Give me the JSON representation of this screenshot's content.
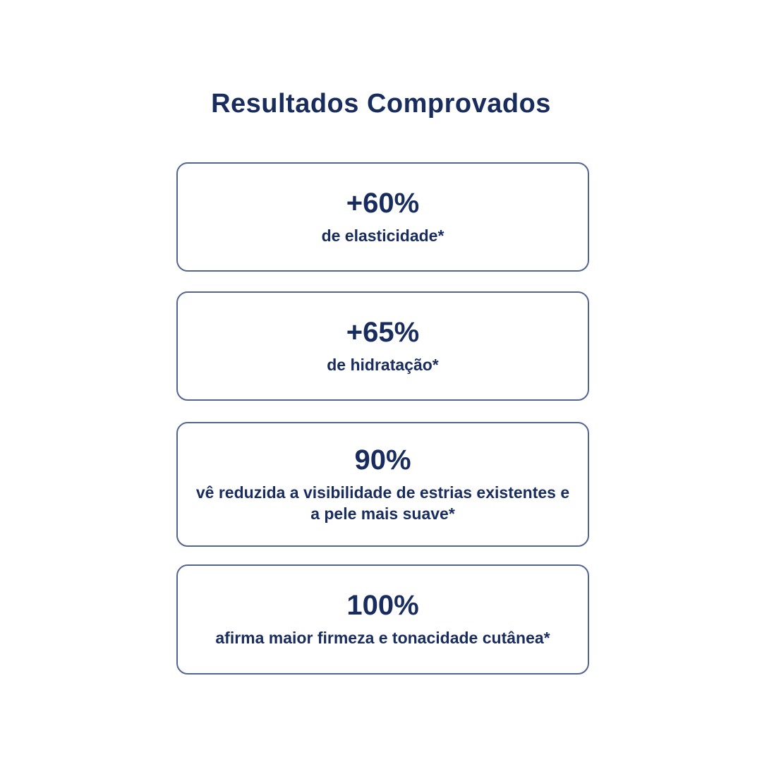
{
  "section": {
    "title": "Resultados Comprovados"
  },
  "cards": [
    {
      "value": "+60%",
      "description": "de elasticidade*"
    },
    {
      "value": "+65%",
      "description": "de hidratação*"
    },
    {
      "value": "90%",
      "description": "vê reduzida a visibilidade de estrias existentes e a pele mais suave*"
    },
    {
      "value": "100%",
      "description": "afirma maior firmeza e tonacidade cutânea*"
    }
  ],
  "colors": {
    "text_navy": "#192c5e",
    "card_border": "#54648f",
    "background": "#ffffff"
  }
}
